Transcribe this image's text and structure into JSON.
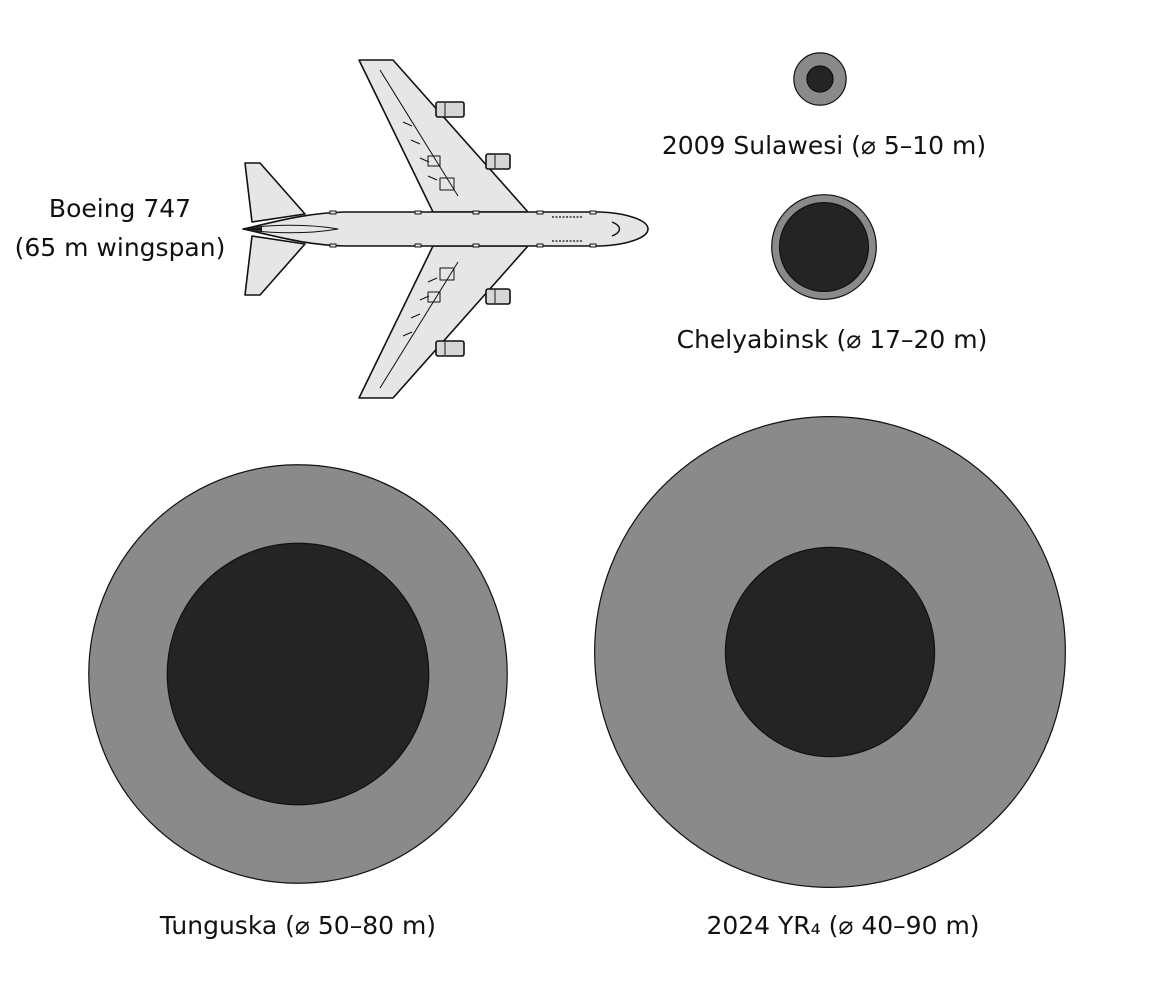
{
  "colors": {
    "background": "#ffffff",
    "range_ring": "#8a8a8a",
    "core": "#242424",
    "aircraft_fill": "#e6e6e6",
    "outline": "#111111"
  },
  "reference": {
    "name_line": "Boeing 747",
    "span_line": "(65 m wingspan)",
    "wingspan_m": 65
  },
  "objects": [
    {
      "id": "sulawesi",
      "label": "2009 Sulawesi (⌀ 5–10 m)",
      "min_m": 5,
      "max_m": 10
    },
    {
      "id": "chelyabinsk",
      "label": "Chelyabinsk (⌀ 17–20 m)",
      "min_m": 17,
      "max_m": 20
    },
    {
      "id": "tunguska",
      "label": "Tunguska (⌀ 50–80 m)",
      "min_m": 50,
      "max_m": 80
    },
    {
      "id": "yr4",
      "label": "2024 YR₄ (⌀ 40–90 m)",
      "min_m": 40,
      "max_m": 90
    }
  ]
}
